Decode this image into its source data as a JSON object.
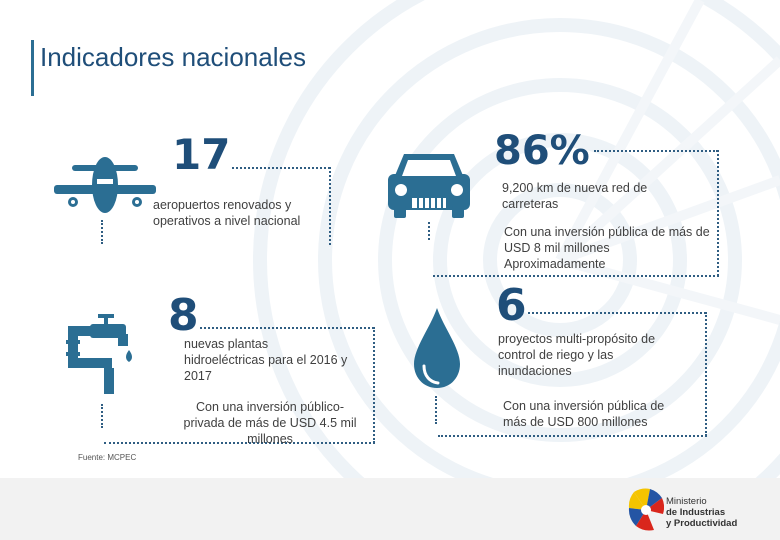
{
  "title": "Indicadores nacionales",
  "colors": {
    "accent": "#1f4e79",
    "icon": "#2b6e93",
    "dots": "#2f5d82"
  },
  "airports": {
    "value": "17",
    "desc_lines": [
      "aeropuertos renovados y",
      "operativos a nivel nacional"
    ],
    "icon": "airplane-icon"
  },
  "roads": {
    "value": "86%",
    "desc_lines": [
      "9,200 km de nueva red de",
      "carreteras"
    ],
    "investment_lines": [
      "Con una inversión pública de más de",
      "USD 8 mil millones",
      "Aproximadamente"
    ],
    "icon": "car-icon"
  },
  "hydro": {
    "value": "8",
    "desc_lines": [
      "nuevas plantas",
      "hidroeléctricas para el 2016 y",
      "2017"
    ],
    "investment_lines": [
      "Con una inversión público-",
      "privada de más de USD 4.5 mil",
      "millones"
    ],
    "icon": "water-tap-icon"
  },
  "multipurpose": {
    "value": "6",
    "desc_lines": [
      "proyectos multi-propósito de",
      "control de riego y las",
      "inundaciones"
    ],
    "investment_lines": [
      "Con una inversión pública de",
      "más de USD 800 millones"
    ],
    "icon": "water-drop-icon"
  },
  "source": "Fuente: MCPEC",
  "logo": {
    "lines": [
      "Ministerio",
      "de Industrias",
      "y Productividad"
    ]
  }
}
